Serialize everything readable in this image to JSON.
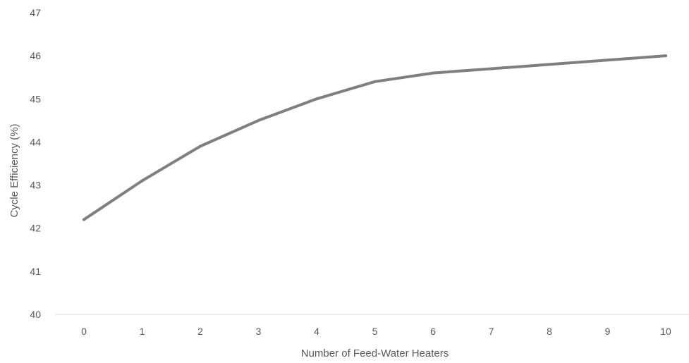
{
  "chart_data": {
    "type": "line",
    "title": "",
    "xlabel": "Number of Feed-Water Heaters",
    "ylabel": "Cycle Efficiency (%)",
    "x": [
      0,
      1,
      2,
      3,
      4,
      5,
      6,
      7,
      8,
      9,
      10
    ],
    "xticks": [
      "0",
      "1",
      "2",
      "3",
      "4",
      "5",
      "6",
      "7",
      "8",
      "9",
      "10"
    ],
    "yticks": [
      "40",
      "41",
      "42",
      "43",
      "44",
      "45",
      "46",
      "47"
    ],
    "ylim": [
      40,
      47
    ],
    "grid": false,
    "legend": "none",
    "series": [
      {
        "values": [
          42.2,
          43.1,
          43.9,
          44.5,
          45.0,
          45.4,
          45.6,
          45.7,
          45.8,
          45.9,
          46.0
        ],
        "color": "#7f7f7f"
      }
    ],
    "axis_color": "#d9d9d9",
    "text_color": "#595959"
  }
}
